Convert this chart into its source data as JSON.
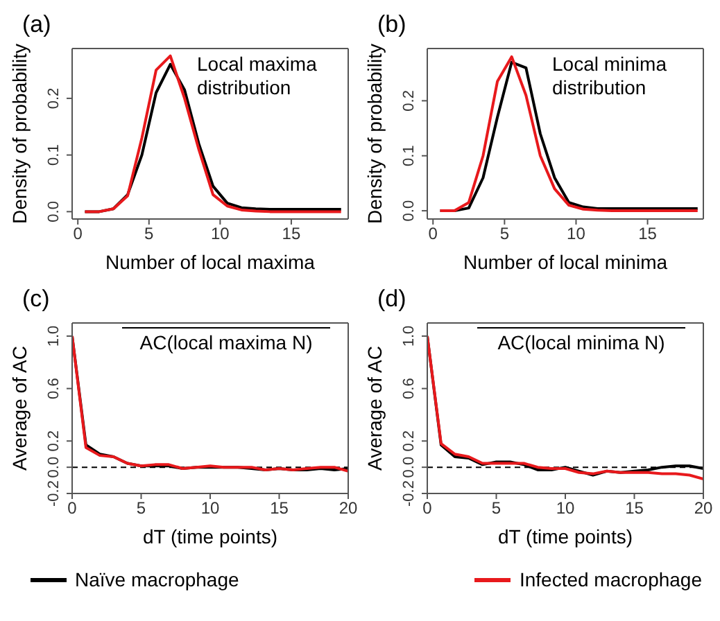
{
  "chart_data": [
    {
      "type": "line",
      "title": "(a)",
      "xlabel": "Number of local maxima",
      "ylabel": "Density of probability",
      "annotations": [
        "Local maxima distribution"
      ],
      "x": [
        0.5,
        1.5,
        2.5,
        3.5,
        4.5,
        5.5,
        6.5,
        7.5,
        8.5,
        9.5,
        10.5,
        11.5,
        12.5,
        13.5,
        14.5,
        15.5,
        16.5,
        17.5,
        18.5
      ],
      "series": [
        {
          "color": "#000000",
          "values": [
            0,
            0,
            0.005,
            0.03,
            0.1,
            0.21,
            0.26,
            0.215,
            0.12,
            0.045,
            0.015,
            0.007,
            0.005,
            0.004,
            0.004,
            0.004,
            0.004,
            0.004,
            0.004
          ]
        },
        {
          "color": "#e8191c",
          "values": [
            0,
            0,
            0.005,
            0.028,
            0.13,
            0.25,
            0.275,
            0.2,
            0.11,
            0.03,
            0.01,
            0.003,
            0.001,
            0.0,
            0.0,
            0.0,
            0.0,
            0.0,
            0.0
          ]
        }
      ],
      "xlim": [
        -0.4,
        19
      ],
      "xticks": [
        0,
        5,
        10,
        15
      ],
      "ylim": [
        -0.013,
        0.288
      ],
      "yticks": [
        {
          "value": 0,
          "label": "0.0"
        },
        {
          "value": 0.1,
          "label": "0.1"
        },
        {
          "value": 0.2,
          "label": "0.2"
        }
      ],
      "grid": false,
      "legend": false,
      "marker": "none",
      "line_style": "solid"
    },
    {
      "type": "line",
      "title": "(b)",
      "xlabel": "Number of local minima",
      "ylabel": "Density of probability",
      "annotations": [
        "Local minima distribution"
      ],
      "x": [
        0.5,
        1.5,
        2.5,
        3.5,
        4.5,
        5.5,
        6.5,
        7.5,
        8.5,
        9.5,
        10.5,
        11.5,
        12.5,
        13.5,
        14.5,
        15.5,
        16.5,
        17.5,
        18.5
      ],
      "series": [
        {
          "color": "#000000",
          "values": [
            0,
            0,
            0.005,
            0.06,
            0.17,
            0.27,
            0.26,
            0.14,
            0.06,
            0.015,
            0.007,
            0.004,
            0.004,
            0.004,
            0.004,
            0.004,
            0.004,
            0.004,
            0.004
          ]
        },
        {
          "color": "#e8191c",
          "values": [
            0,
            0,
            0.015,
            0.1,
            0.235,
            0.28,
            0.21,
            0.1,
            0.04,
            0.01,
            0.003,
            0.001,
            0.0,
            0.0,
            0.0,
            0.0,
            0.0,
            0.0,
            0.0
          ]
        }
      ],
      "xlim": [
        -0.4,
        18.9
      ],
      "xticks": [
        0,
        5,
        10,
        15
      ],
      "ylim": [
        -0.015,
        0.295
      ],
      "yticks": [
        {
          "value": 0,
          "label": "0.0"
        },
        {
          "value": 0.1,
          "label": "0.1"
        },
        {
          "value": 0.2,
          "label": "0.2"
        }
      ],
      "grid": false,
      "legend": false,
      "marker": "none",
      "line_style": "solid"
    },
    {
      "type": "line",
      "title": "(c)",
      "xlabel": "dT (time points)",
      "ylabel": "Average of AC",
      "annotations": [
        "AC(local maxima N)"
      ],
      "x": [
        0,
        1,
        2,
        3,
        4,
        5,
        6,
        7,
        8,
        9,
        10,
        11,
        12,
        13,
        14,
        15,
        16,
        17,
        18,
        19,
        20
      ],
      "series": [
        {
          "color": "#000000",
          "values": [
            1.0,
            0.17,
            0.1,
            0.08,
            0.03,
            0.01,
            0.01,
            0.01,
            -0.01,
            0.0,
            0.0,
            0.0,
            0.0,
            -0.01,
            -0.02,
            -0.01,
            -0.02,
            -0.02,
            -0.01,
            -0.02,
            -0.01
          ]
        },
        {
          "color": "#e8191c",
          "values": [
            1.0,
            0.15,
            0.09,
            0.08,
            0.03,
            0.01,
            0.02,
            0.02,
            -0.01,
            0.0,
            0.01,
            0.0,
            0.0,
            0.0,
            -0.02,
            -0.01,
            -0.02,
            -0.01,
            0.0,
            0.0,
            -0.03
          ]
        }
      ],
      "ref_lines": [
        {
          "axis": "y",
          "value": 0,
          "color": "#000000",
          "line_style": "dashed"
        }
      ],
      "xlim": [
        0,
        20
      ],
      "xticks": [
        0,
        5,
        10,
        15,
        20
      ],
      "ylim": [
        -0.2,
        1.1
      ],
      "yticks": [
        {
          "value": -0.2,
          "label": "-0.2"
        },
        {
          "value": 0,
          "label": "0.0"
        },
        {
          "value": 0.2,
          "label": "0.2"
        },
        {
          "value": 0.6,
          "label": "0.6"
        },
        {
          "value": 1.0,
          "label": "1.0"
        }
      ],
      "grid": false,
      "legend": false,
      "marker": "none",
      "line_style": "solid"
    },
    {
      "type": "line",
      "title": "(d)",
      "xlabel": "dT (time points)",
      "ylabel": "Average of AC",
      "annotations": [
        "AC(local minima N)"
      ],
      "x": [
        0,
        1,
        2,
        3,
        4,
        5,
        6,
        7,
        8,
        9,
        10,
        11,
        12,
        13,
        14,
        15,
        16,
        17,
        18,
        19,
        20
      ],
      "series": [
        {
          "name": "Naïve macrophage",
          "color": "#000000",
          "values": [
            1.0,
            0.17,
            0.08,
            0.07,
            0.02,
            0.04,
            0.04,
            0.02,
            -0.02,
            -0.02,
            0.0,
            -0.03,
            -0.06,
            -0.03,
            -0.04,
            -0.03,
            -0.02,
            0.0,
            0.01,
            0.01,
            -0.01
          ]
        },
        {
          "name": "Infected macrophage",
          "color": "#e8191c",
          "values": [
            1.0,
            0.18,
            0.1,
            0.08,
            0.03,
            0.03,
            0.03,
            0.03,
            0.0,
            -0.01,
            -0.01,
            -0.04,
            -0.05,
            -0.03,
            -0.04,
            -0.04,
            -0.04,
            -0.05,
            -0.05,
            -0.06,
            -0.09
          ]
        }
      ],
      "ref_lines": [
        {
          "axis": "y",
          "value": 0,
          "color": "#000000",
          "line_style": "dashed"
        }
      ],
      "xlim": [
        0,
        20
      ],
      "xticks": [
        0,
        5,
        10,
        15,
        20
      ],
      "ylim": [
        -0.2,
        1.1
      ],
      "yticks": [
        {
          "value": -0.2,
          "label": "-0.2"
        },
        {
          "value": 0,
          "label": "0.0"
        },
        {
          "value": 0.2,
          "label": "0.2"
        },
        {
          "value": 0.6,
          "label": "0.6"
        },
        {
          "value": 1.0,
          "label": "1.0"
        }
      ],
      "grid": false,
      "legend": "bottom",
      "marker": "none",
      "line_style": "solid"
    }
  ]
}
